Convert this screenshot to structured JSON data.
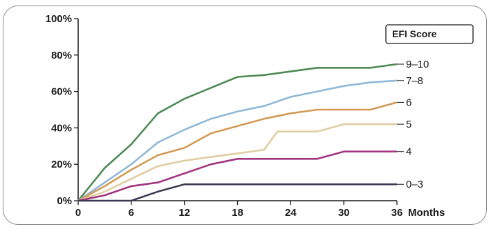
{
  "chart_data": {
    "type": "line",
    "title": "",
    "xlabel": "",
    "ylabel": "",
    "x_unit_label": "Months",
    "legend_title": "EFI Score",
    "legend_placement": "top-right",
    "grid": false,
    "xlim": [
      0,
      36
    ],
    "ylim": [
      0,
      100
    ],
    "x_ticks": [
      0,
      6,
      12,
      18,
      24,
      30,
      36
    ],
    "y_ticks": [
      0,
      20,
      40,
      60,
      80,
      100
    ],
    "y_tick_labels": [
      "0%",
      "20%",
      "40%",
      "60%",
      "80%",
      "100%"
    ],
    "x_tick_labels": [
      "0",
      "6",
      "12",
      "18",
      "24",
      "30",
      "36"
    ],
    "series": [
      {
        "name": "9–10",
        "color": "#4e8a55",
        "points": [
          [
            0,
            0
          ],
          [
            3,
            18
          ],
          [
            6,
            31
          ],
          [
            9,
            48
          ],
          [
            12,
            56
          ],
          [
            15,
            62
          ],
          [
            18,
            68
          ],
          [
            21,
            69
          ],
          [
            24,
            71
          ],
          [
            27,
            73
          ],
          [
            30,
            73
          ],
          [
            33,
            73
          ],
          [
            36,
            75
          ]
        ]
      },
      {
        "name": "7–8",
        "color": "#8fb8d8",
        "points": [
          [
            0,
            0
          ],
          [
            3,
            10
          ],
          [
            6,
            20
          ],
          [
            9,
            32
          ],
          [
            12,
            39
          ],
          [
            15,
            45
          ],
          [
            18,
            49
          ],
          [
            21,
            52
          ],
          [
            24,
            57
          ],
          [
            27,
            60
          ],
          [
            30,
            63
          ],
          [
            33,
            65
          ],
          [
            36,
            66
          ]
        ]
      },
      {
        "name": "6",
        "color": "#d29a54",
        "points": [
          [
            0,
            0
          ],
          [
            3,
            8
          ],
          [
            6,
            17
          ],
          [
            9,
            25
          ],
          [
            12,
            29
          ],
          [
            15,
            37
          ],
          [
            18,
            41
          ],
          [
            21,
            45
          ],
          [
            24,
            48
          ],
          [
            27,
            50
          ],
          [
            30,
            50
          ],
          [
            33,
            50
          ],
          [
            36,
            54
          ]
        ]
      },
      {
        "name": "5",
        "color": "#e0cda2",
        "points": [
          [
            0,
            0
          ],
          [
            3,
            5
          ],
          [
            6,
            12
          ],
          [
            9,
            19
          ],
          [
            12,
            22
          ],
          [
            15,
            24
          ],
          [
            18,
            26
          ],
          [
            21,
            28
          ],
          [
            22.5,
            38
          ],
          [
            27,
            38
          ],
          [
            30,
            42
          ],
          [
            33,
            42
          ],
          [
            36,
            42
          ]
        ]
      },
      {
        "name": "4",
        "color": "#a3357f",
        "points": [
          [
            0,
            0
          ],
          [
            3,
            3
          ],
          [
            6,
            8
          ],
          [
            9,
            10
          ],
          [
            12,
            15
          ],
          [
            15,
            20
          ],
          [
            18,
            23
          ],
          [
            21,
            23
          ],
          [
            24,
            23
          ],
          [
            27,
            23
          ],
          [
            30,
            27
          ],
          [
            33,
            27
          ],
          [
            36,
            27
          ]
        ]
      },
      {
        "name": "0–3",
        "color": "#3a3a55",
        "points": [
          [
            0,
            0
          ],
          [
            6,
            0
          ],
          [
            9,
            5
          ],
          [
            12,
            9
          ],
          [
            15,
            9
          ],
          [
            18,
            9
          ],
          [
            21,
            9
          ],
          [
            24,
            9
          ],
          [
            27,
            9
          ],
          [
            30,
            9
          ],
          [
            33,
            9
          ],
          [
            36,
            9
          ]
        ]
      }
    ]
  }
}
